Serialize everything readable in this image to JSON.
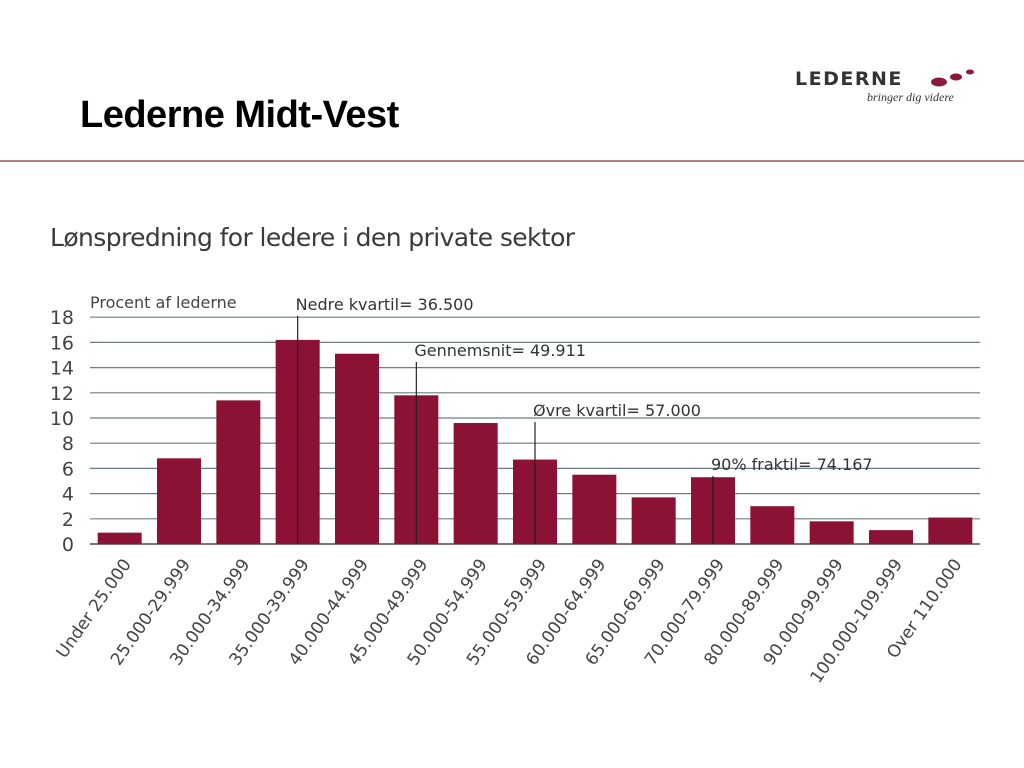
{
  "slide": {
    "title": "Lederne Midt-Vest"
  },
  "logo": {
    "name": "LEDERNE",
    "tagline": "bringer dig videre",
    "dot_color": "#8b1a3a"
  },
  "chart_data": {
    "type": "bar",
    "title": "Lønspredning for ledere i den private sektor",
    "ylabel": "Procent af lederne",
    "xlabel": "",
    "ylim": [
      0,
      18
    ],
    "yticks": [
      0,
      2,
      4,
      6,
      8,
      10,
      12,
      14,
      16,
      18
    ],
    "grid": true,
    "bar_color": "#8b1235",
    "categories": [
      "Under 25.000",
      "25.000-29.999",
      "30.000-34.999",
      "35.000-39.999",
      "40.000-44.999",
      "45.000-49.999",
      "50.000-54.999",
      "55.000-59.999",
      "60.000-64.999",
      "65.000-69.999",
      "70.000-79.999",
      "80.000-89.999",
      "90.000-99.999",
      "100.000-109.999",
      "Over 110.000"
    ],
    "values": [
      0.9,
      6.8,
      11.4,
      16.2,
      15.1,
      11.8,
      9.6,
      6.7,
      5.5,
      3.7,
      5.3,
      3.0,
      1.8,
      1.1,
      2.1
    ],
    "annotations": [
      {
        "label": "Nedre kvartil= 36.500",
        "category_index": 3,
        "value": 36500
      },
      {
        "label": "Gennemsnit= 49.911",
        "category_index": 5,
        "value": 49911
      },
      {
        "label": "Øvre kvartil= 57.000",
        "category_index": 7,
        "value": 57000
      },
      {
        "label": "90% fraktil= 74.167",
        "category_index": 10,
        "value": 74167
      }
    ]
  }
}
